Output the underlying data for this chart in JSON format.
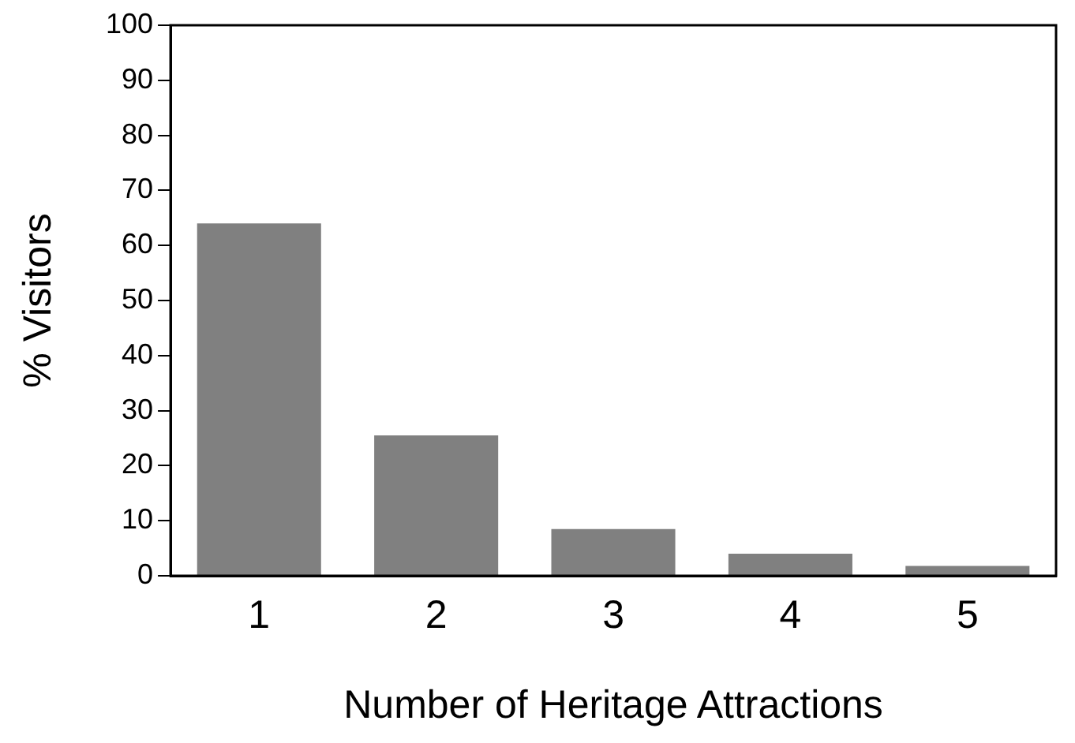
{
  "chart_data": {
    "type": "bar",
    "xlabel": "Number of Heritage Attractions",
    "ylabel": "% Visitors",
    "categories": [
      "1",
      "2",
      "3",
      "4",
      "5"
    ],
    "values": [
      64,
      25.5,
      8.5,
      4,
      1.8
    ],
    "color": "#808080",
    "ylim": [
      0,
      100
    ],
    "yticks": [
      0,
      10,
      20,
      30,
      40,
      50,
      60,
      70,
      80,
      90,
      100
    ],
    "grid": false
  }
}
